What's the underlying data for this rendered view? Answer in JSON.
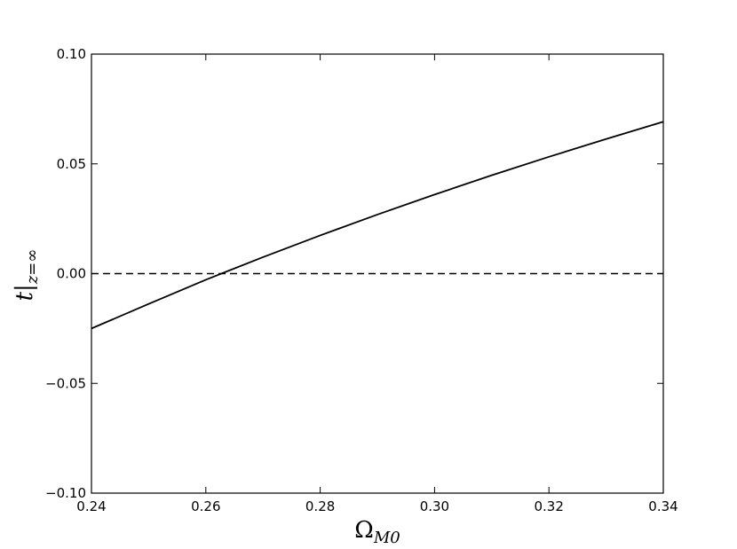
{
  "chart_data": {
    "type": "line",
    "xlabel": {
      "symbol": "Ω",
      "subscript": "M0"
    },
    "ylabel": {
      "symbol": "t|",
      "subscript": "z=∞"
    },
    "x": [
      0.24,
      0.25,
      0.26,
      0.27,
      0.28,
      0.29,
      0.3,
      0.31,
      0.32,
      0.33,
      0.34
    ],
    "values": [
      -0.025,
      -0.0138,
      -0.0028,
      0.0075,
      0.0174,
      0.0269,
      0.036,
      0.0448,
      0.0532,
      0.0613,
      0.0692
    ],
    "color": "#000000",
    "hline": 0,
    "xlim": [
      0.24,
      0.34
    ],
    "ylim": [
      -0.1,
      0.1
    ],
    "xticks": [
      0.24,
      0.26,
      0.28,
      {
        "value": 0.3,
        "label": "0.30"
      },
      0.32,
      0.34
    ],
    "yticks": [
      {
        "value": -0.1,
        "label": "−0.10"
      },
      {
        "value": -0.05,
        "label": "−0.05"
      },
      {
        "value": 0,
        "label": "0.00"
      },
      0.05,
      {
        "value": 0.1,
        "label": "0.10"
      }
    ]
  }
}
